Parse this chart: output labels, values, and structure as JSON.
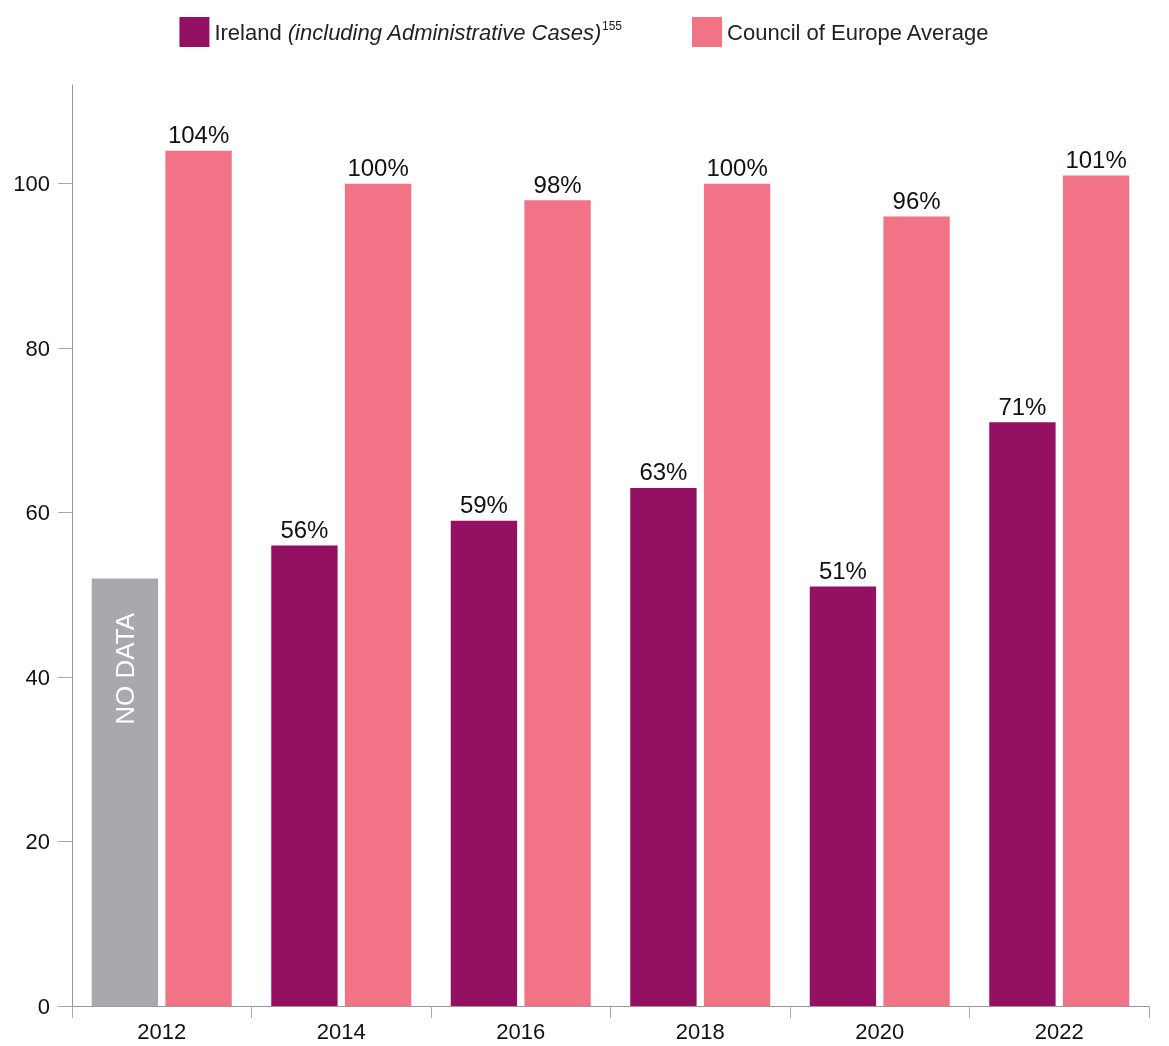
{
  "chart_data": {
    "type": "bar",
    "categories": [
      "2012",
      "2014",
      "2016",
      "2018",
      "2020",
      "2022"
    ],
    "series": [
      {
        "name": "Ireland (including Administrative Cases)$^{155}$",
        "color": "#941063",
        "colors": [
          "#a8a9ad",
          "#941063",
          "#941063",
          "#941063",
          "#941063",
          "#941063"
        ],
        "values": [
          52,
          56,
          59,
          63,
          51,
          71
        ],
        "value_labels": [
          null,
          "56%",
          "59%",
          "63%",
          "51%",
          "71%"
        ]
      },
      {
        "name": "Council of Europe Average",
        "color": "#f27386",
        "values": [
          104,
          100,
          98,
          100,
          96,
          101
        ],
        "value_labels": [
          "104%",
          "100%",
          "98%",
          "100%",
          "96%",
          "101%"
        ]
      }
    ],
    "annotations": [
      {
        "text": "NO DATA",
        "x": "2012",
        "y": 41
      }
    ],
    "ylim": [
      0,
      112
    ],
    "yticks": [
      0,
      20,
      40,
      60,
      80,
      100
    ],
    "grid": false,
    "legend": "top"
  }
}
